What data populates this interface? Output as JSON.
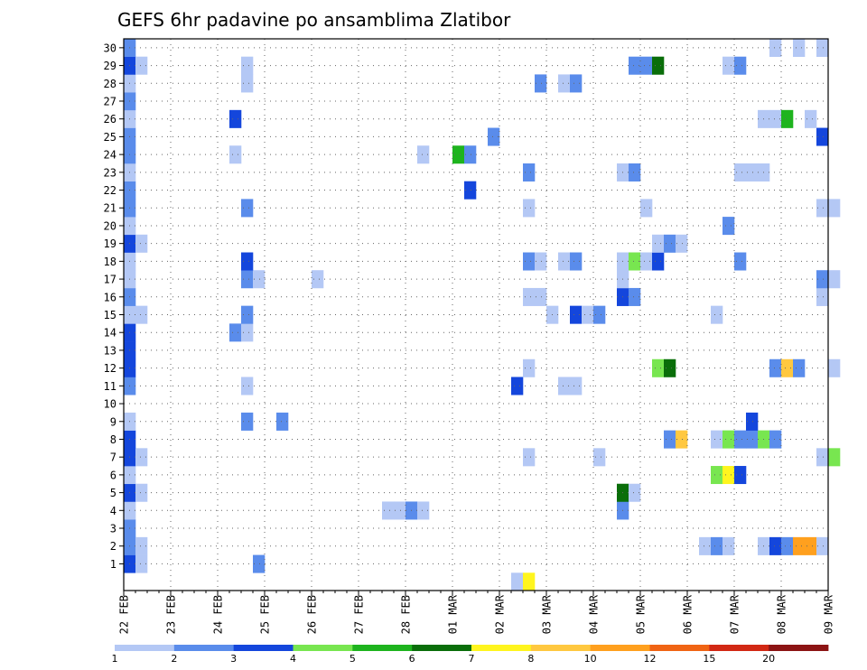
{
  "chart_data": {
    "type": "heatmap",
    "title": "GEFS 6hr padavine po ansamblima Zlatibor",
    "xlabel": "",
    "ylabel": "",
    "x_tick_labels": [
      "22 FEB",
      "23 FEB",
      "24 FEB",
      "25 FEB",
      "26 FEB",
      "27 FEB",
      "28 FEB",
      "01 MAR",
      "02 MAR",
      "03 MAR",
      "04 MAR",
      "05 MAR",
      "06 MAR",
      "07 MAR",
      "08 MAR",
      "09 MAR"
    ],
    "x_steps_per_day": 4,
    "x_range_steps": [
      0,
      60
    ],
    "y_tick_labels": [
      "1",
      "2",
      "3",
      "4",
      "5",
      "6",
      "7",
      "8",
      "9",
      "10",
      "11",
      "12",
      "13",
      "14",
      "15",
      "16",
      "17",
      "18",
      "19",
      "20",
      "21",
      "22",
      "23",
      "24",
      "25",
      "26",
      "27",
      "28",
      "29",
      "30"
    ],
    "grid": true,
    "legend": {
      "placement": "bottom",
      "bounds": [
        "1",
        "2",
        "3",
        "4",
        "5",
        "6",
        "7",
        "8",
        "10",
        "12",
        "15",
        "20"
      ],
      "colors": [
        "#b4c8f5",
        "#5a8ceb",
        "#1446dc",
        "#78e650",
        "#1eb41e",
        "#0a6e0a",
        "#fff51e",
        "#ffc840",
        "#ffa01e",
        "#f06414",
        "#d22814",
        "#8c1414"
      ]
    },
    "cells": [
      {
        "m": 1,
        "t": 0,
        "c": 3
      },
      {
        "m": 1,
        "t": 1,
        "c": 1
      },
      {
        "m": 1,
        "t": 11,
        "c": 2
      },
      {
        "m": 2,
        "t": 0,
        "c": 2
      },
      {
        "m": 2,
        "t": 1,
        "c": 1
      },
      {
        "m": 2,
        "t": 49,
        "c": 1
      },
      {
        "m": 2,
        "t": 50,
        "c": 2
      },
      {
        "m": 2,
        "t": 51,
        "c": 1
      },
      {
        "m": 2,
        "t": 54,
        "c": 1
      },
      {
        "m": 2,
        "t": 55,
        "c": 3
      },
      {
        "m": 2,
        "t": 56,
        "c": 2
      },
      {
        "m": 2,
        "t": 57,
        "c": 9
      },
      {
        "m": 2,
        "t": 58,
        "c": 9
      },
      {
        "m": 2,
        "t": 59,
        "c": 1
      },
      {
        "m": 3,
        "t": 0,
        "c": 2
      },
      {
        "m": 4,
        "t": 0,
        "c": 1
      },
      {
        "m": 4,
        "t": 22,
        "c": 1
      },
      {
        "m": 4,
        "t": 23,
        "c": 1
      },
      {
        "m": 4,
        "t": 24,
        "c": 2
      },
      {
        "m": 4,
        "t": 25,
        "c": 1
      },
      {
        "m": 4,
        "t": 42,
        "c": 2
      },
      {
        "m": 5,
        "t": 0,
        "c": 3
      },
      {
        "m": 5,
        "t": 1,
        "c": 1
      },
      {
        "m": 5,
        "t": 42,
        "c": 6
      },
      {
        "m": 5,
        "t": 43,
        "c": 1
      },
      {
        "m": 6,
        "t": 0,
        "c": 1
      },
      {
        "m": 6,
        "t": 50,
        "c": 4
      },
      {
        "m": 6,
        "t": 51,
        "c": 7
      },
      {
        "m": 6,
        "t": 52,
        "c": 3
      },
      {
        "m": 7,
        "t": 0,
        "c": 3
      },
      {
        "m": 7,
        "t": 1,
        "c": 1
      },
      {
        "m": 7,
        "t": 34,
        "c": 1
      },
      {
        "m": 7,
        "t": 40,
        "c": 1
      },
      {
        "m": 7,
        "t": 59,
        "c": 1
      },
      {
        "m": 7,
        "t": 60,
        "c": 4
      },
      {
        "m": 8,
        "t": 0,
        "c": 3
      },
      {
        "m": 8,
        "t": 46,
        "c": 2
      },
      {
        "m": 8,
        "t": 47,
        "c": 8
      },
      {
        "m": 8,
        "t": 50,
        "c": 1
      },
      {
        "m": 8,
        "t": 51,
        "c": 4
      },
      {
        "m": 8,
        "t": 52,
        "c": 2
      },
      {
        "m": 8,
        "t": 53,
        "c": 2
      },
      {
        "m": 8,
        "t": 54,
        "c": 4
      },
      {
        "m": 8,
        "t": 55,
        "c": 2
      },
      {
        "m": 9,
        "t": 0,
        "c": 1
      },
      {
        "m": 9,
        "t": 10,
        "c": 2
      },
      {
        "m": 9,
        "t": 13,
        "c": 2
      },
      {
        "m": 9,
        "t": 53,
        "c": 3
      },
      {
        "m": 11,
        "t": 0,
        "c": 2
      },
      {
        "m": 11,
        "t": 10,
        "c": 1
      },
      {
        "m": 11,
        "t": 33,
        "c": 3
      },
      {
        "m": 11,
        "t": 37,
        "c": 1
      },
      {
        "m": 11,
        "t": 38,
        "c": 1
      },
      {
        "m": 12,
        "t": 0,
        "c": 3
      },
      {
        "m": 12,
        "t": 34,
        "c": 1
      },
      {
        "m": 12,
        "t": 45,
        "c": 4
      },
      {
        "m": 12,
        "t": 46,
        "c": 6
      },
      {
        "m": 12,
        "t": 55,
        "c": 2
      },
      {
        "m": 12,
        "t": 56,
        "c": 8
      },
      {
        "m": 12,
        "t": 57,
        "c": 2
      },
      {
        "m": 12,
        "t": 60,
        "c": 1
      },
      {
        "m": 13,
        "t": 0,
        "c": 3
      },
      {
        "m": 14,
        "t": 0,
        "c": 3
      },
      {
        "m": 14,
        "t": 9,
        "c": 2
      },
      {
        "m": 14,
        "t": 10,
        "c": 1
      },
      {
        "m": 15,
        "t": 0,
        "c": 1
      },
      {
        "m": 15,
        "t": 1,
        "c": 1
      },
      {
        "m": 15,
        "t": 10,
        "c": 2
      },
      {
        "m": 15,
        "t": 36,
        "c": 1
      },
      {
        "m": 15,
        "t": 38,
        "c": 3
      },
      {
        "m": 15,
        "t": 39,
        "c": 1
      },
      {
        "m": 15,
        "t": 40,
        "c": 2
      },
      {
        "m": 15,
        "t": 50,
        "c": 1
      },
      {
        "m": 16,
        "t": 0,
        "c": 2
      },
      {
        "m": 16,
        "t": 34,
        "c": 1
      },
      {
        "m": 16,
        "t": 35,
        "c": 1
      },
      {
        "m": 16,
        "t": 42,
        "c": 3
      },
      {
        "m": 16,
        "t": 43,
        "c": 2
      },
      {
        "m": 16,
        "t": 59,
        "c": 1
      },
      {
        "m": 17,
        "t": 0,
        "c": 1
      },
      {
        "m": 17,
        "t": 10,
        "c": 2
      },
      {
        "m": 17,
        "t": 11,
        "c": 1
      },
      {
        "m": 17,
        "t": 16,
        "c": 1
      },
      {
        "m": 17,
        "t": 42,
        "c": 1
      },
      {
        "m": 17,
        "t": 59,
        "c": 2
      },
      {
        "m": 17,
        "t": 60,
        "c": 1
      },
      {
        "m": 18,
        "t": 0,
        "c": 1
      },
      {
        "m": 18,
        "t": 10,
        "c": 3
      },
      {
        "m": 18,
        "t": 34,
        "c": 2
      },
      {
        "m": 18,
        "t": 35,
        "c": 1
      },
      {
        "m": 18,
        "t": 37,
        "c": 1
      },
      {
        "m": 18,
        "t": 38,
        "c": 2
      },
      {
        "m": 18,
        "t": 42,
        "c": 1
      },
      {
        "m": 18,
        "t": 43,
        "c": 4
      },
      {
        "m": 18,
        "t": 44,
        "c": 1
      },
      {
        "m": 18,
        "t": 45,
        "c": 3
      },
      {
        "m": 18,
        "t": 52,
        "c": 2
      },
      {
        "m": 19,
        "t": 0,
        "c": 3
      },
      {
        "m": 19,
        "t": 1,
        "c": 1
      },
      {
        "m": 19,
        "t": 45,
        "c": 1
      },
      {
        "m": 19,
        "t": 46,
        "c": 2
      },
      {
        "m": 19,
        "t": 47,
        "c": 1
      },
      {
        "m": 20,
        "t": 0,
        "c": 1
      },
      {
        "m": 20,
        "t": 51,
        "c": 2
      },
      {
        "m": 21,
        "t": 0,
        "c": 2
      },
      {
        "m": 21,
        "t": 10,
        "c": 2
      },
      {
        "m": 21,
        "t": 34,
        "c": 1
      },
      {
        "m": 21,
        "t": 44,
        "c": 1
      },
      {
        "m": 21,
        "t": 59,
        "c": 1
      },
      {
        "m": 21,
        "t": 60,
        "c": 1
      },
      {
        "m": 22,
        "t": 0,
        "c": 2
      },
      {
        "m": 22,
        "t": 29,
        "c": 3
      },
      {
        "m": 23,
        "t": 0,
        "c": 1
      },
      {
        "m": 23,
        "t": 34,
        "c": 2
      },
      {
        "m": 23,
        "t": 42,
        "c": 1
      },
      {
        "m": 23,
        "t": 43,
        "c": 2
      },
      {
        "m": 23,
        "t": 52,
        "c": 1
      },
      {
        "m": 23,
        "t": 53,
        "c": 1
      },
      {
        "m": 23,
        "t": 54,
        "c": 1
      },
      {
        "m": 24,
        "t": 0,
        "c": 2
      },
      {
        "m": 24,
        "t": 9,
        "c": 1
      },
      {
        "m": 24,
        "t": 25,
        "c": 1
      },
      {
        "m": 24,
        "t": 28,
        "c": 5
      },
      {
        "m": 24,
        "t": 29,
        "c": 2
      },
      {
        "m": 25,
        "t": 0,
        "c": 2
      },
      {
        "m": 25,
        "t": 31,
        "c": 2
      },
      {
        "m": 25,
        "t": 59,
        "c": 3
      },
      {
        "m": 26,
        "t": 0,
        "c": 1
      },
      {
        "m": 26,
        "t": 9,
        "c": 3
      },
      {
        "m": 26,
        "t": 54,
        "c": 1
      },
      {
        "m": 26,
        "t": 55,
        "c": 1
      },
      {
        "m": 26,
        "t": 56,
        "c": 5
      },
      {
        "m": 26,
        "t": 58,
        "c": 1
      },
      {
        "m": 27,
        "t": 0,
        "c": 2
      },
      {
        "m": 28,
        "t": 0,
        "c": 1
      },
      {
        "m": 28,
        "t": 10,
        "c": 1
      },
      {
        "m": 28,
        "t": 35,
        "c": 2
      },
      {
        "m": 28,
        "t": 37,
        "c": 1
      },
      {
        "m": 28,
        "t": 38,
        "c": 2
      },
      {
        "m": 29,
        "t": 0,
        "c": 3
      },
      {
        "m": 29,
        "t": 1,
        "c": 1
      },
      {
        "m": 29,
        "t": 10,
        "c": 1
      },
      {
        "m": 29,
        "t": 43,
        "c": 2
      },
      {
        "m": 29,
        "t": 44,
        "c": 2
      },
      {
        "m": 29,
        "t": 45,
        "c": 6
      },
      {
        "m": 29,
        "t": 51,
        "c": 1
      },
      {
        "m": 29,
        "t": 52,
        "c": 2
      },
      {
        "m": 30,
        "t": 0,
        "c": 2
      },
      {
        "m": 30,
        "t": 55,
        "c": 1
      },
      {
        "m": 30,
        "t": 57,
        "c": 1
      },
      {
        "m": 30,
        "t": 59,
        "c": 1
      },
      {
        "m": 0,
        "t": 33,
        "c": 1
      },
      {
        "m": 0,
        "t": 34,
        "c": 7
      }
    ]
  }
}
